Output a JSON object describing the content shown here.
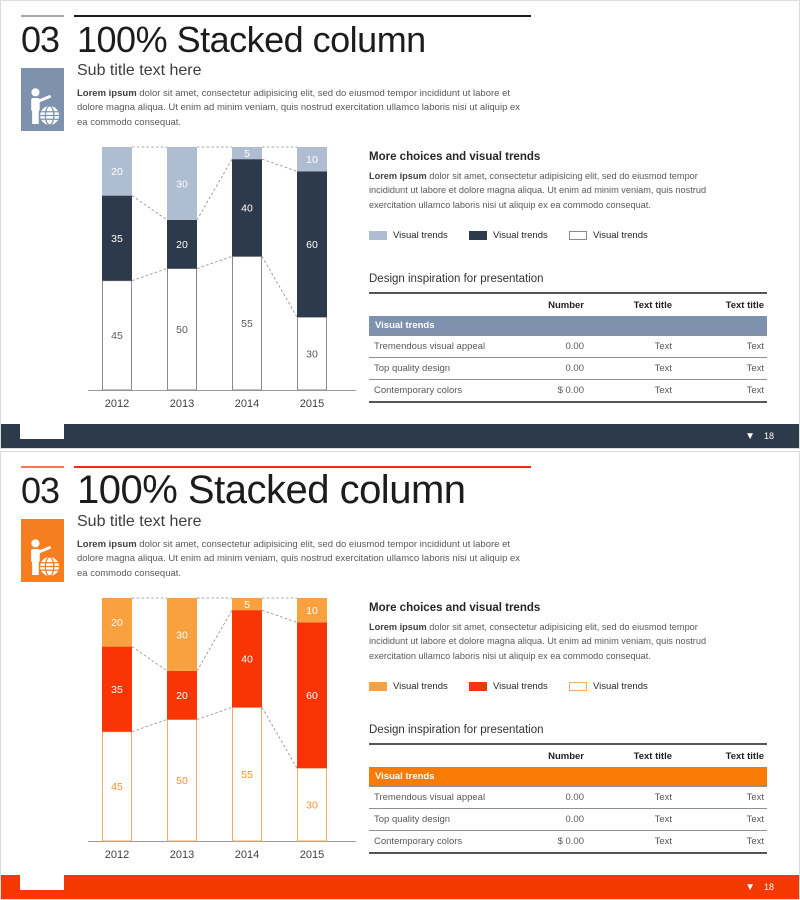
{
  "page_number": "18",
  "footer_marker": "▼",
  "content": {
    "section_number": "03",
    "title": "100% Stacked column",
    "subtitle": "Sub title text here",
    "lead_bold": "Lorem ipsum",
    "lead_text": " dolor sit amet, consectetur adipisicing elit, sed do eiusmod tempor incididunt ut labore et dolore magna aliqua. Ut enim ad minim veniam, quis nostrud exercitation ullamco laboris nisi ut aliquip ex ea commodo consequat.",
    "right_heading": "More choices and visual trends",
    "right_bold": "Lorem ipsum",
    "right_text": " dolor sit amet, consectetur adipisicing elit, sed do eiusmod tempor incididunt ut labore et dolore magna aliqua. Ut enim ad minim veniam, quis nostrud exercitation ullamco laboris nisi ut aliquip ex ea commodo consequat.",
    "legend_label": "Visual trends",
    "table_heading": "Design inspiration for presentation",
    "table": {
      "columns": [
        "",
        "Number",
        "Text title",
        "Text title"
      ],
      "banner": "Visual trends",
      "rows": [
        {
          "cells": [
            "Tremendous visual appeal",
            "0.00",
            "Text",
            "Text"
          ]
        },
        {
          "cells": [
            "Top quality design",
            "0.00",
            "Text",
            "Text"
          ]
        },
        {
          "cells": [
            "Contemporary colors",
            "$ 0.00",
            "Text",
            "Text"
          ]
        }
      ]
    }
  },
  "chart_data": {
    "type": "bar",
    "variant": "100% stacked column",
    "categories": [
      "2012",
      "2013",
      "2014",
      "2015"
    ],
    "series": [
      {
        "name": "Visual trends (bottom, white fill)",
        "values": [
          45,
          50,
          55,
          30
        ]
      },
      {
        "name": "Visual trends (middle, solid fill)",
        "values": [
          35,
          20,
          40,
          60
        ]
      },
      {
        "name": "Visual trends (top, light fill)",
        "values": [
          20,
          30,
          5,
          10
        ]
      }
    ],
    "ylim": [
      0,
      100
    ],
    "data_labels": true,
    "gridlines": false,
    "connectors": "dashed series-boundary lines between adjacent columns",
    "legend": [
      "Visual trends",
      "Visual trends",
      "Visual trends"
    ],
    "legend_position": "right panel, horizontal"
  },
  "slides": [
    {
      "name": "blue variant",
      "theme": {
        "line_short": "#a8a8a8",
        "line_long": "#1a1a1a",
        "icon_box": "#7e92ae",
        "series_light": "#aebdd2",
        "series_dark": "#2d3a4c",
        "series_white_border": "#8a8a8a",
        "white_label_color": "#595959",
        "banner_bg": "#7e92ae",
        "footer_bg": "#2d3a4c"
      }
    },
    {
      "name": "orange variant",
      "theme": {
        "line_short": "#f4794f",
        "line_long": "#f22b0e",
        "icon_box": "#f57e20",
        "series_light": "#f9a13f",
        "series_dark": "#fa3505",
        "series_white_border": "#f6aa63",
        "white_label_color": "#f8932a",
        "banner_bg": "#f97b05",
        "footer_bg": "#f43900"
      }
    }
  ]
}
